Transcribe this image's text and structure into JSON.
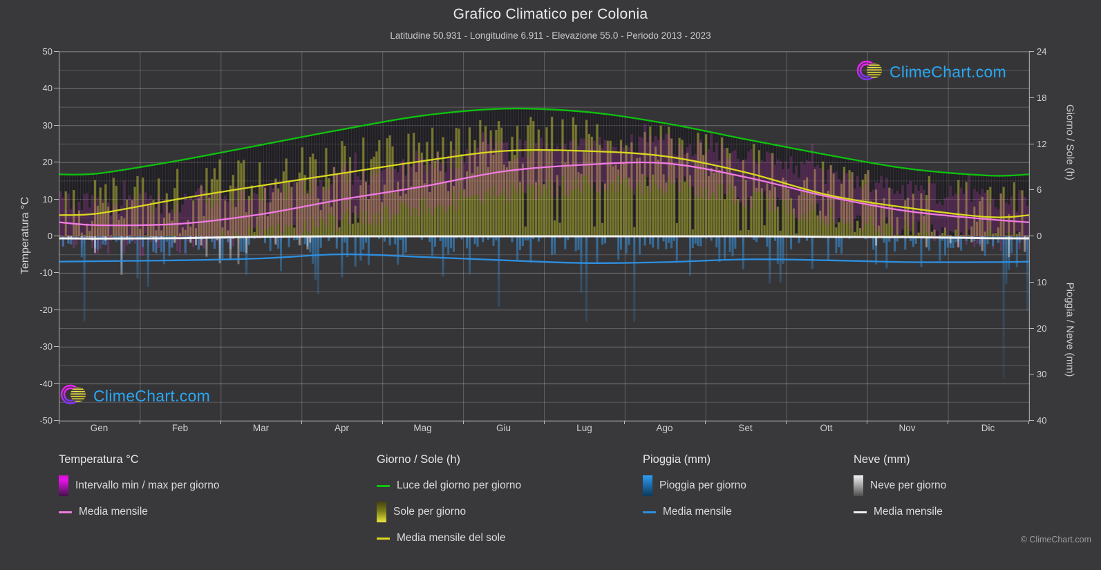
{
  "header": {
    "title": "Grafico Climatico per Colonia",
    "subtitle": "Latitudine 50.931 - Longitudine 6.911 - Elevazione 55.0 - Periodo 2013 - 2023"
  },
  "watermark": {
    "text": "ClimeChart.com",
    "copyright": "© ClimeChart.com",
    "text_color": "#2aa7f2"
  },
  "chart_data": {
    "type": "line",
    "title": "Grafico Climatico per Colonia",
    "x_categories": [
      "Gen",
      "Feb",
      "Mar",
      "Apr",
      "Mag",
      "Giu",
      "Lug",
      "Ago",
      "Set",
      "Ott",
      "Nov",
      "Dic"
    ],
    "grid": true,
    "axes": {
      "left": {
        "label": "Temperatura °C",
        "min": -50,
        "max": 50,
        "tick_step": 10,
        "grid_step": 5
      },
      "right_top": {
        "label": "Giorno / Sole (h)",
        "min": 0,
        "max": 24,
        "ticks": [
          0,
          6,
          12,
          18,
          24
        ]
      },
      "right_bottom": {
        "label": "Pioggia / Neve (mm)",
        "min": 0,
        "max": 40,
        "ticks": [
          0,
          10,
          20,
          30,
          40
        ]
      }
    },
    "monthly_series": [
      {
        "name": "Luce del giorno per giorno",
        "axis": "right_top",
        "unit": "h",
        "color": "#0ec20e",
        "values": [
          8.2,
          9.9,
          11.9,
          13.9,
          15.7,
          16.6,
          16.2,
          14.7,
          12.6,
          10.6,
          8.8,
          7.9
        ]
      },
      {
        "name": "Media mensile del sole",
        "axis": "right_top",
        "unit": "h",
        "color": "#d9d81f",
        "values": [
          3.0,
          4.9,
          6.6,
          8.2,
          9.8,
          11.1,
          11.1,
          10.4,
          8.3,
          5.4,
          3.7,
          2.5
        ]
      },
      {
        "name": "Media mensile (temperatura)",
        "axis": "left",
        "unit": "°C",
        "color": "#ef7ae2",
        "values": [
          3.0,
          3.4,
          6.0,
          10.0,
          13.5,
          17.6,
          19.4,
          19.8,
          16.0,
          10.8,
          6.8,
          4.6
        ]
      },
      {
        "name": "Media mensile (pioggia)",
        "axis": "right_bottom",
        "unit": "mm/giorno",
        "color": "#2d8fe0",
        "values": [
          5.4,
          5.2,
          4.8,
          3.9,
          4.5,
          5.2,
          5.8,
          5.6,
          5.0,
          5.2,
          5.6,
          5.6
        ]
      },
      {
        "name": "Media mensile (neve)",
        "axis": "right_bottom",
        "unit": "mm/giorno",
        "color": "#f0f0f0",
        "values": [
          0.5,
          0.4,
          0.1,
          0,
          0,
          0,
          0,
          0,
          0,
          0.1,
          0.2,
          0.4
        ]
      }
    ],
    "daily_layers": [
      {
        "name": "Intervallo min / max per giorno",
        "axis": "left",
        "color": "#d43ec8"
      },
      {
        "name": "Luce del giorno per giorno",
        "axis": "right_top",
        "color": "#1a1420"
      },
      {
        "name": "Sole per giorno",
        "axis": "right_top",
        "color": "#d0d034"
      },
      {
        "name": "Pioggia per giorno",
        "axis": "right_bottom",
        "color": "#3882be"
      },
      {
        "name": "Neve per giorno",
        "axis": "right_bottom",
        "color": "#e1e1e1"
      }
    ]
  },
  "legend": {
    "groups": [
      {
        "title": "Temperatura °C",
        "items": [
          {
            "swatch": "gradient-magenta",
            "label": "Intervallo min / max per giorno"
          },
          {
            "swatch": "line-pink",
            "label": "Media mensile"
          }
        ]
      },
      {
        "title": "Giorno / Sole (h)",
        "items": [
          {
            "swatch": "line-green",
            "label": "Luce del giorno per giorno"
          },
          {
            "swatch": "gradient-yellow",
            "label": "Sole per giorno"
          },
          {
            "swatch": "line-yellow",
            "label": "Media mensile del sole"
          }
        ]
      },
      {
        "title": "Pioggia (mm)",
        "items": [
          {
            "swatch": "gradient-blue",
            "label": "Pioggia per giorno"
          },
          {
            "swatch": "line-blue",
            "label": "Media mensile"
          }
        ]
      },
      {
        "title": "Neve (mm)",
        "items": [
          {
            "swatch": "gradient-gray",
            "label": "Neve per giorno"
          },
          {
            "swatch": "line-white",
            "label": "Media mensile"
          }
        ]
      }
    ]
  }
}
